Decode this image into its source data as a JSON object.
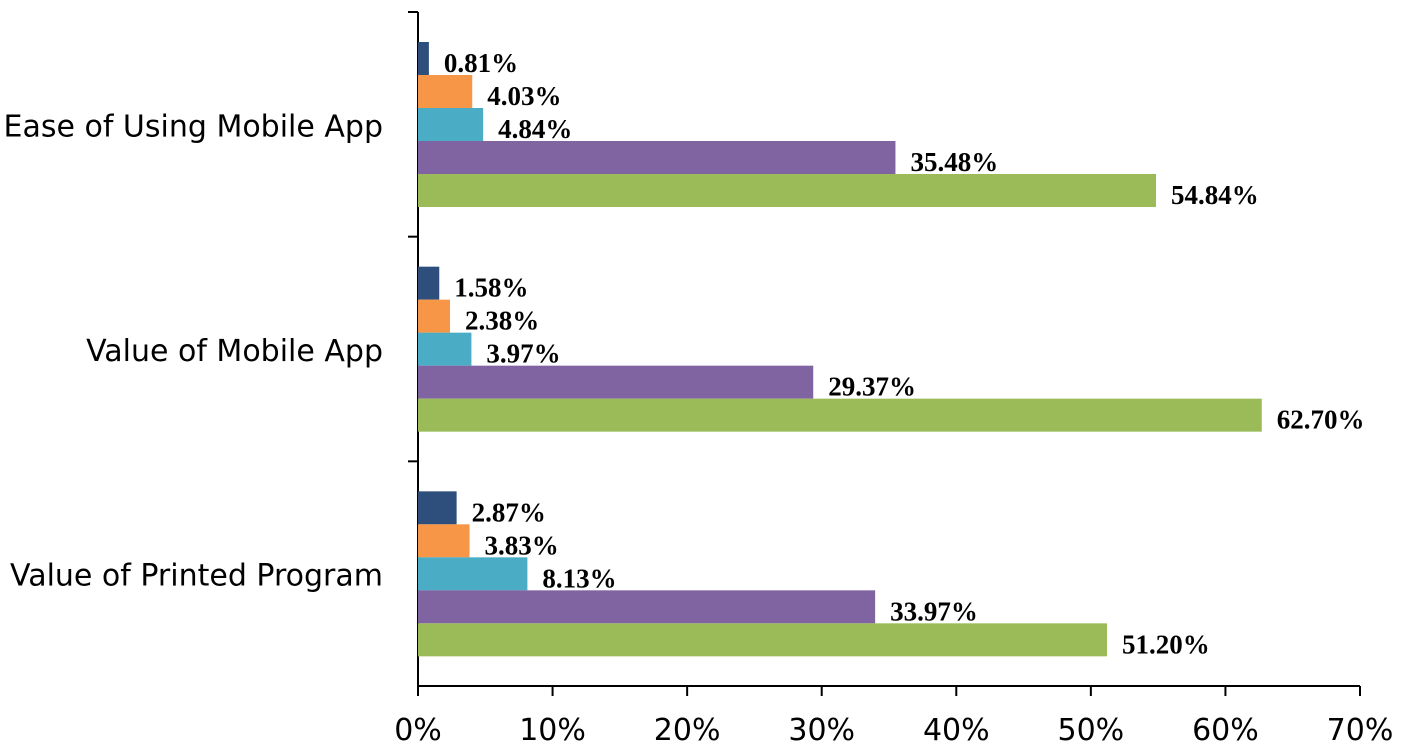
{
  "chart_data": {
    "type": "barh",
    "categories": [
      "Ease of Using Mobile App",
      "Value of Mobile App",
      "Value of Printed Program"
    ],
    "series": [
      {
        "color": "#2e4f7c",
        "values": [
          0.81,
          1.58,
          2.87
        ],
        "value_labels": [
          "0.81%",
          "1.58%",
          "2.87%"
        ]
      },
      {
        "color": "#f79646",
        "values": [
          4.03,
          2.38,
          3.83
        ],
        "value_labels": [
          "4.03%",
          "2.38%",
          "3.83%"
        ]
      },
      {
        "color": "#4bacc6",
        "values": [
          4.84,
          3.97,
          8.13
        ],
        "value_labels": [
          "4.84%",
          "3.97%",
          "8.13%"
        ]
      },
      {
        "color": "#8064a2",
        "values": [
          35.48,
          29.37,
          33.97
        ],
        "value_labels": [
          "35.48%",
          "29.37%",
          "33.97%"
        ]
      },
      {
        "color": "#9bbb59",
        "values": [
          54.84,
          62.7,
          51.2
        ],
        "value_labels": [
          "54.84%",
          "62.70%",
          "51.20%"
        ]
      }
    ],
    "xlim": [
      0,
      70
    ],
    "xticks": [
      {
        "value": 0,
        "label": "0%"
      },
      {
        "value": 10,
        "label": "10%"
      },
      {
        "value": 20,
        "label": "20%"
      },
      {
        "value": 30,
        "label": "30%"
      },
      {
        "value": 40,
        "label": "40%"
      },
      {
        "value": 50,
        "label": "50%"
      },
      {
        "value": 60,
        "label": "60%"
      },
      {
        "value": 70,
        "label": "70%"
      }
    ],
    "grid": false
  }
}
